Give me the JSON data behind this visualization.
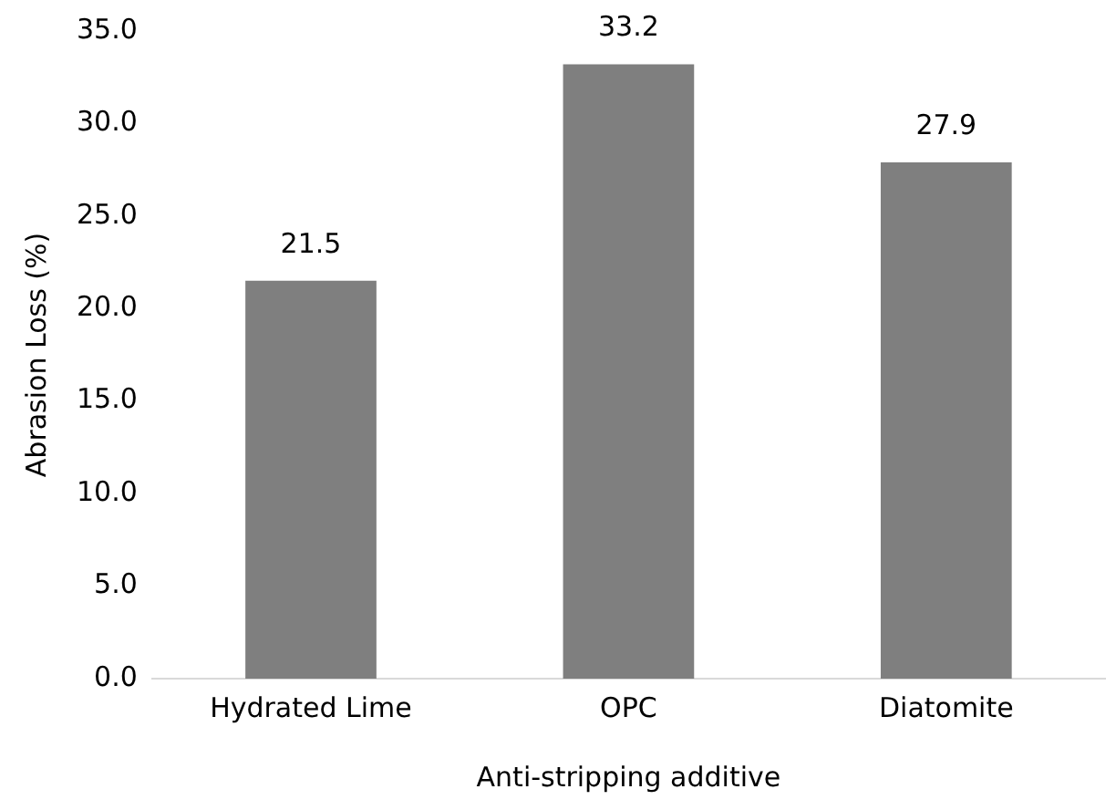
{
  "chart_data": {
    "type": "bar",
    "xlabel": "Anti-stripping additive",
    "ylabel": "Abrasion Loss (%)",
    "categories": [
      "Hydrated Lime",
      "OPC",
      "Diatomite"
    ],
    "values": [
      21.5,
      33.2,
      27.9
    ],
    "color": "#7f7f7f",
    "value_labels": [
      "21.5",
      "33.2",
      "27.9"
    ],
    "ylim": [
      0,
      35
    ],
    "yticks": [
      {
        "value": 0,
        "label": "0.0"
      },
      {
        "value": 5,
        "label": "5.0"
      },
      {
        "value": 10,
        "label": "10.0"
      },
      {
        "value": 15,
        "label": "15.0"
      },
      {
        "value": 20,
        "label": "20.0"
      },
      {
        "value": 25,
        "label": "25.0"
      },
      {
        "value": 30,
        "label": "30.0"
      },
      {
        "value": 35,
        "label": "35.0"
      }
    ],
    "grid": false,
    "legend": false
  }
}
